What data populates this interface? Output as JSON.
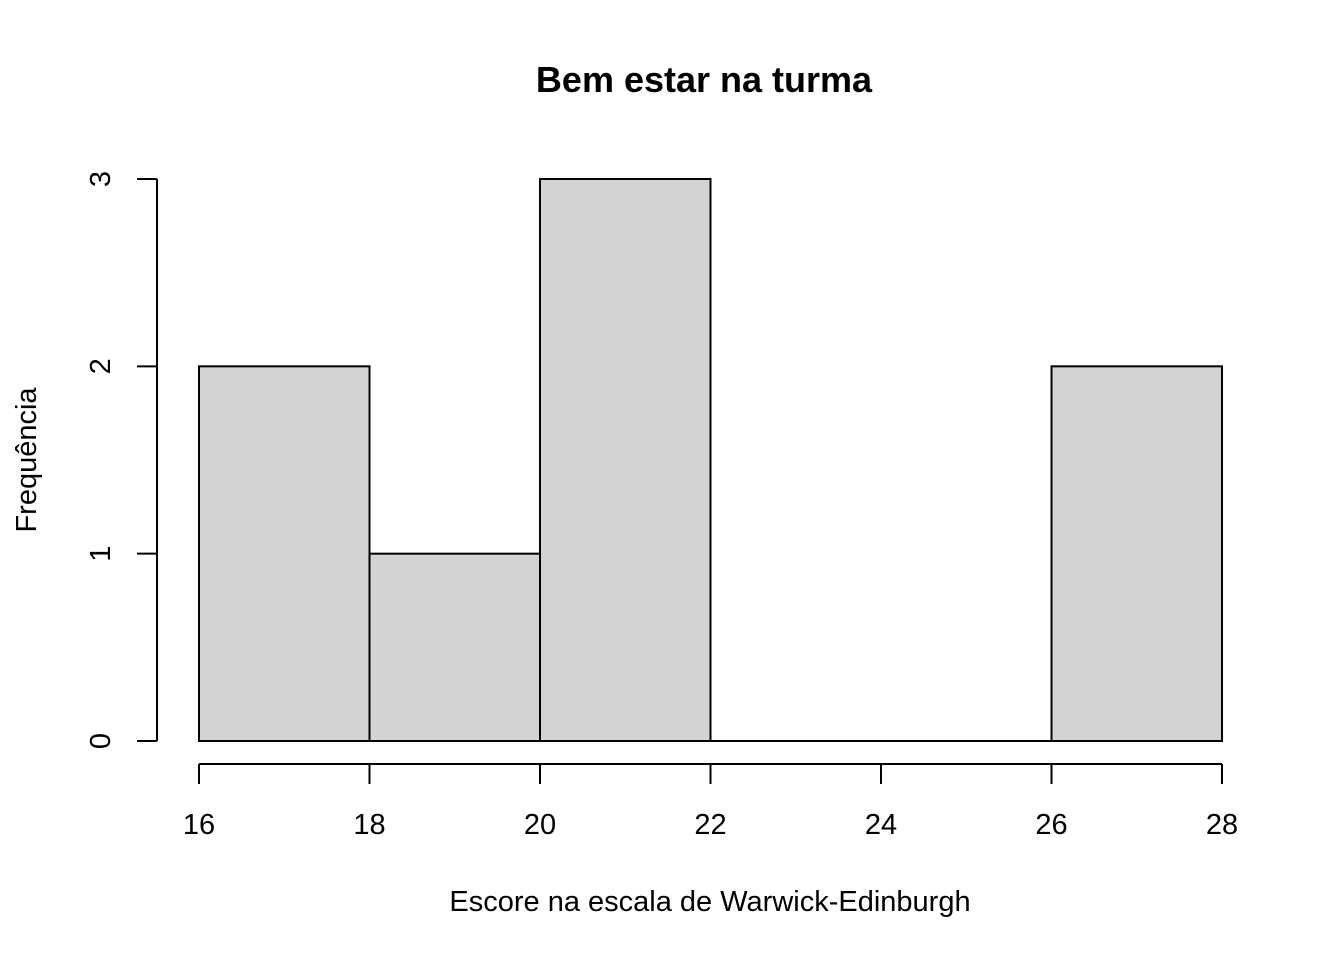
{
  "chart_data": {
    "type": "bar",
    "title": "Bem estar na turma",
    "xlabel": "Escore na escala de Warwick-Edinburgh",
    "ylabel": "Frequência",
    "bins": [
      {
        "from": 16,
        "to": 18,
        "count": 2
      },
      {
        "from": 18,
        "to": 20,
        "count": 1
      },
      {
        "from": 20,
        "to": 22,
        "count": 3
      },
      {
        "from": 22,
        "to": 24,
        "count": 0
      },
      {
        "from": 24,
        "to": 26,
        "count": 0
      },
      {
        "from": 26,
        "to": 28,
        "count": 2
      }
    ],
    "xlim": [
      16,
      28
    ],
    "ylim": [
      0,
      3
    ],
    "xticks": [
      "16",
      "18",
      "20",
      "22",
      "24",
      "26",
      "28"
    ],
    "yticks": [
      "0",
      "1",
      "2",
      "3"
    ],
    "bar_color": "#d3d3d3",
    "grid": false,
    "legend": "none"
  }
}
